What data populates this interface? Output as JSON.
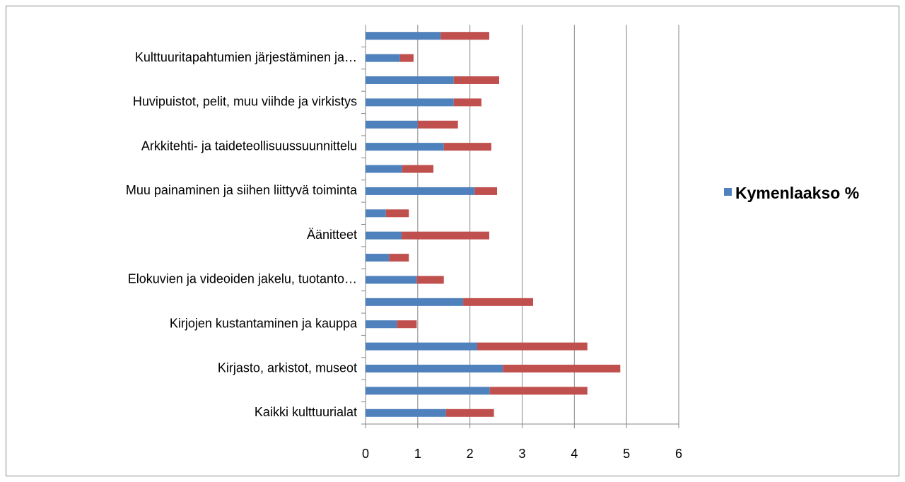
{
  "chart_data": {
    "type": "stacked_barh",
    "categories": [
      "Kaikki kulttuurialat",
      null,
      "Kirjasto, arkistot, museot",
      null,
      "Kirjojen kustantaminen ja kauppa",
      null,
      "Elokuvien ja videoiden jakelu, tuotanto…",
      null,
      "Äänitteet",
      null,
      "Muu painaminen ja siihen liittyvä toiminta",
      null,
      "Arkkitehti- ja taideteollisuussuunnittelu",
      null,
      "Huvipuistot, pelit, muu viihde ja virkistys",
      null,
      "Kulttuuritapahtumien järjestäminen ja…",
      null
    ],
    "series": [
      {
        "name": "Kymenlaakso %",
        "color": "#4f81bd",
        "values": [
          1.54,
          2.38,
          2.63,
          2.14,
          0.6,
          1.87,
          0.98,
          0.45,
          0.69,
          0.39,
          2.09,
          0.7,
          1.5,
          1.0,
          1.69,
          1.69,
          0.66,
          1.44
        ]
      },
      {
        "color": "#c0504d",
        "values": [
          0.92,
          1.87,
          2.25,
          2.11,
          0.38,
          1.34,
          0.52,
          0.38,
          1.68,
          0.44,
          0.43,
          0.6,
          0.91,
          0.77,
          0.53,
          0.87,
          0.26,
          0.93
        ]
      }
    ],
    "xlim": [
      0,
      6
    ],
    "xticks": [
      0,
      1,
      2,
      3,
      4,
      5,
      6
    ],
    "grid": true,
    "legend": "right"
  }
}
